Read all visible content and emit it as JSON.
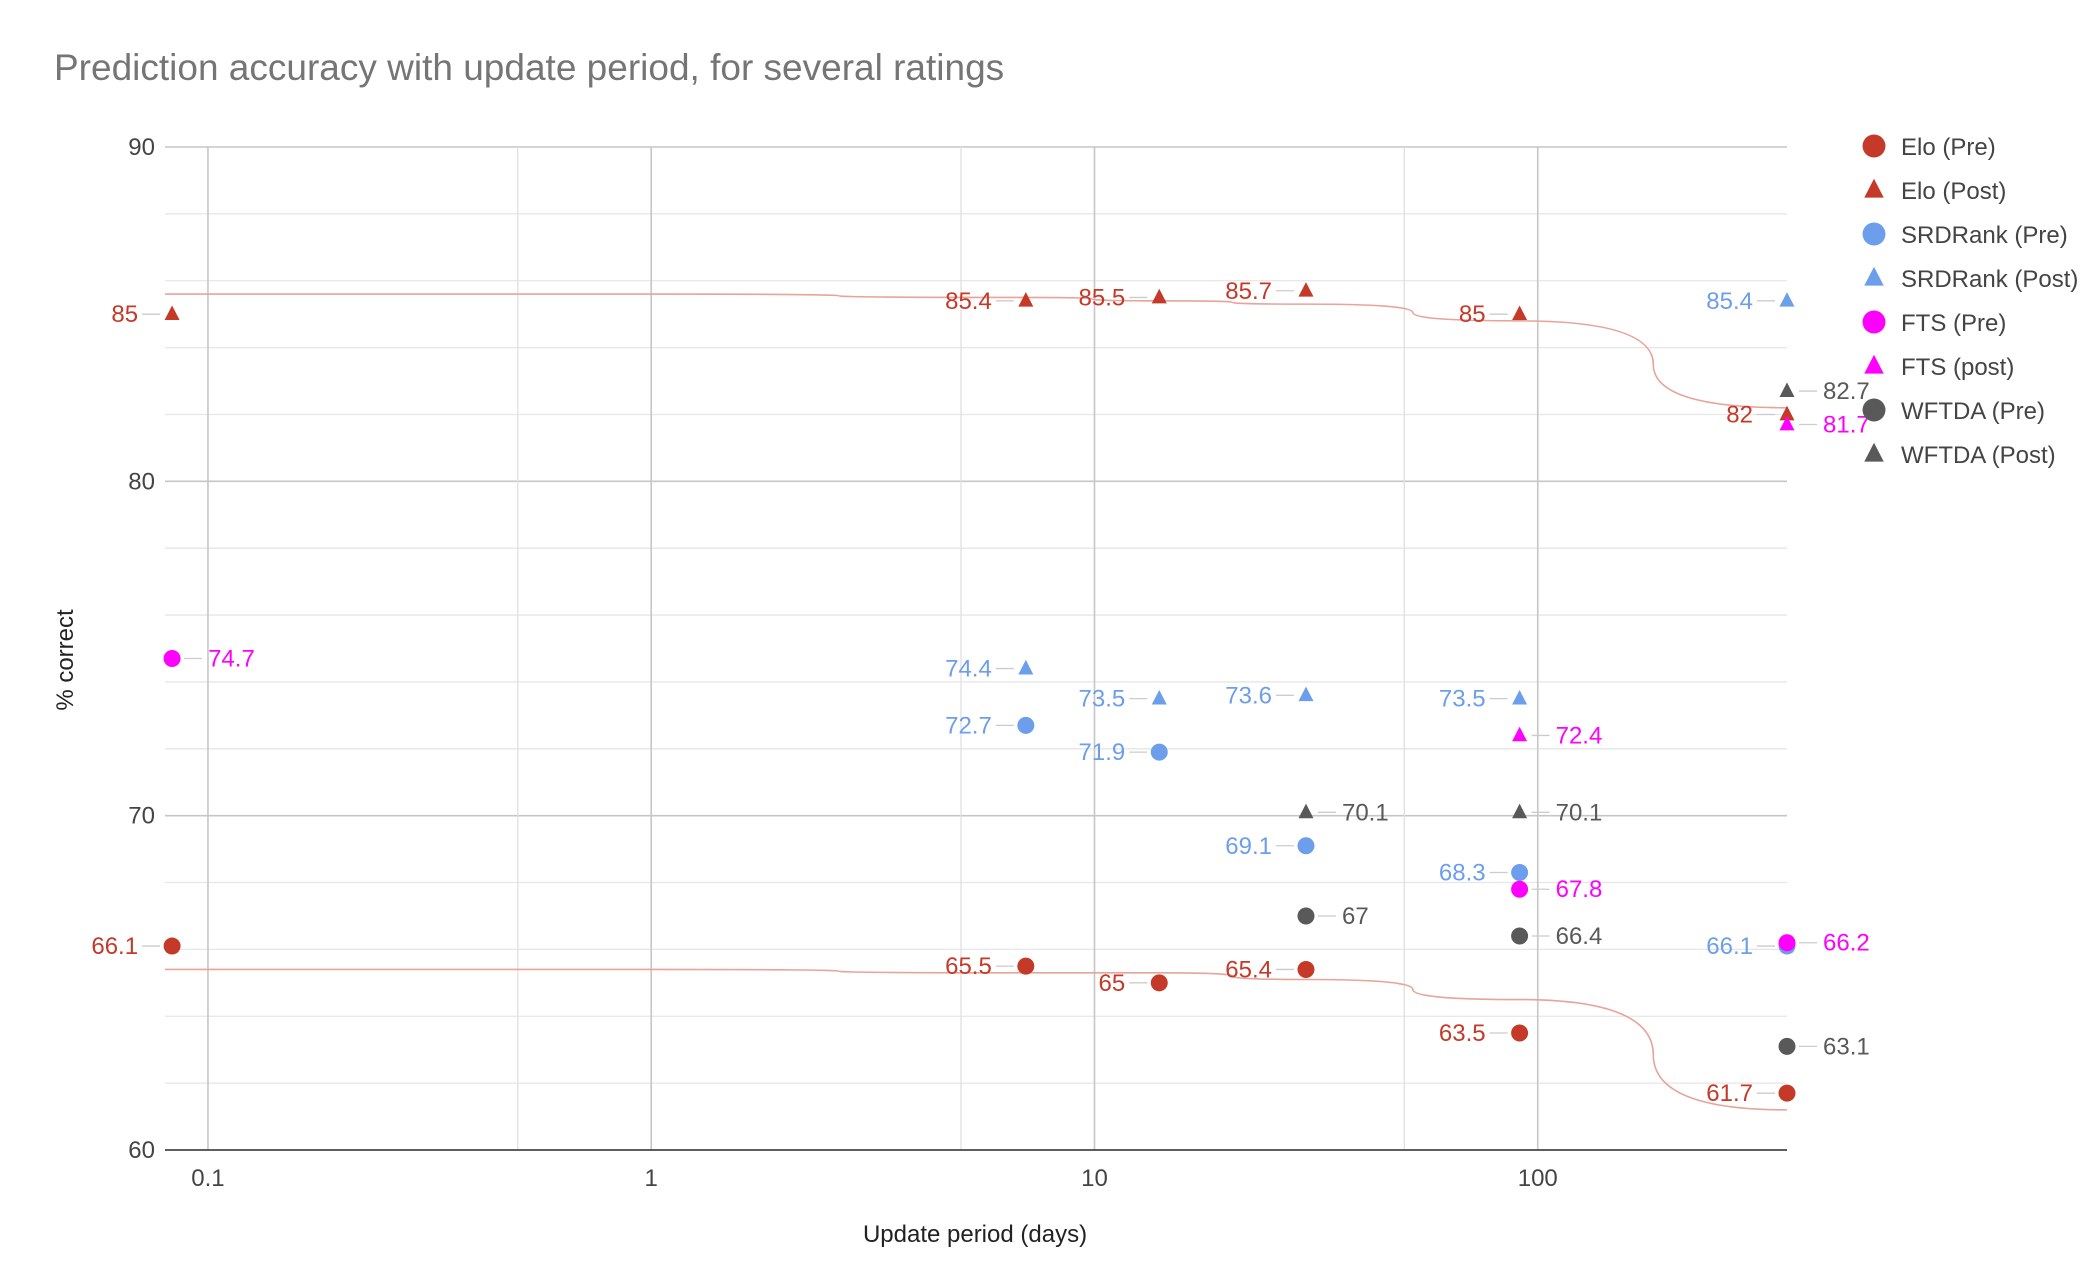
{
  "chart_data": {
    "type": "scatter",
    "title": "Prediction accuracy with update period, for several ratings",
    "xlabel": "Update period (days)",
    "ylabel": "% correct",
    "x_scale": "log",
    "xlim": [
      0.08,
      365
    ],
    "ylim": [
      60,
      90
    ],
    "x_ticks": [
      "0.1",
      "1",
      "10",
      "100"
    ],
    "y_ticks": [
      "60",
      "70",
      "80",
      "90"
    ],
    "grid": true,
    "legend_position": "right",
    "series": [
      {
        "name": "Elo (Pre)",
        "marker": "circle",
        "color": "#c53929",
        "points": [
          {
            "x": 0.083,
            "y": 66.1
          },
          {
            "x": 7,
            "y": 65.5
          },
          {
            "x": 14,
            "y": 65
          },
          {
            "x": 30,
            "y": 65.4
          },
          {
            "x": 91,
            "y": 63.5
          },
          {
            "x": 365,
            "y": 61.7
          }
        ],
        "labels": [
          "66.1",
          "65.5",
          "65",
          "65.4",
          "63.5",
          "61.7"
        ],
        "label_side": [
          "left",
          "left",
          "left",
          "left",
          "left",
          "left"
        ]
      },
      {
        "name": "Elo (Post)",
        "marker": "triangle",
        "color": "#c53929",
        "points": [
          {
            "x": 0.083,
            "y": 85
          },
          {
            "x": 7,
            "y": 85.4
          },
          {
            "x": 14,
            "y": 85.5
          },
          {
            "x": 30,
            "y": 85.7
          },
          {
            "x": 91,
            "y": 85
          },
          {
            "x": 365,
            "y": 82
          }
        ],
        "labels": [
          "85",
          "85.4",
          "85.5",
          "85.7",
          "85",
          "82"
        ],
        "label_side": [
          "left",
          "left",
          "left",
          "left",
          "left",
          "left"
        ]
      },
      {
        "name": "SRDRank (Pre)",
        "marker": "circle",
        "color": "#6d9eeb",
        "points": [
          {
            "x": 7,
            "y": 72.7
          },
          {
            "x": 14,
            "y": 71.9
          },
          {
            "x": 30,
            "y": 69.1
          },
          {
            "x": 91,
            "y": 68.3
          },
          {
            "x": 365,
            "y": 66.1
          }
        ],
        "labels": [
          "72.7",
          "71.9",
          "69.1",
          "68.3",
          "66.1"
        ],
        "label_side": [
          "left",
          "left",
          "left",
          "left",
          "left"
        ]
      },
      {
        "name": "SRDRank (Post)",
        "marker": "triangle",
        "color": "#6d9eeb",
        "points": [
          {
            "x": 7,
            "y": 74.4
          },
          {
            "x": 14,
            "y": 73.5
          },
          {
            "x": 30,
            "y": 73.6
          },
          {
            "x": 91,
            "y": 73.5
          },
          {
            "x": 365,
            "y": 85.4
          }
        ],
        "labels": [
          "74.4",
          "73.5",
          "73.6",
          "73.5",
          "85.4"
        ],
        "label_side": [
          "left",
          "left",
          "left",
          "left",
          "left"
        ]
      },
      {
        "name": "FTS (Pre)",
        "marker": "circle",
        "color": "#ff00ff",
        "points": [
          {
            "x": 0.083,
            "y": 74.7
          },
          {
            "x": 91,
            "y": 67.8
          },
          {
            "x": 365,
            "y": 66.2
          }
        ],
        "labels": [
          "74.7",
          "67.8",
          "66.2"
        ],
        "label_side": [
          "right",
          "right",
          "right"
        ]
      },
      {
        "name": "FTS (post)",
        "marker": "triangle",
        "color": "#ff00ff",
        "points": [
          {
            "x": 91,
            "y": 72.4
          },
          {
            "x": 365,
            "y": 81.7
          }
        ],
        "labels": [
          "72.4",
          "81.7"
        ],
        "label_side": [
          "right",
          "right"
        ]
      },
      {
        "name": "WFTDA (Pre)",
        "marker": "circle",
        "color": "#595959",
        "points": [
          {
            "x": 30,
            "y": 67
          },
          {
            "x": 91,
            "y": 66.4
          },
          {
            "x": 365,
            "y": 63.1
          }
        ],
        "labels": [
          "67",
          "66.4",
          "63.1"
        ],
        "label_side": [
          "right",
          "right",
          "right"
        ]
      },
      {
        "name": "WFTDA (Post)",
        "marker": "triangle",
        "color": "#595959",
        "points": [
          {
            "x": 30,
            "y": 70.1
          },
          {
            "x": 91,
            "y": 70.1
          },
          {
            "x": 365,
            "y": 82.7
          }
        ],
        "labels": [
          "70.1",
          "70.1",
          "82.7"
        ],
        "label_side": [
          "right",
          "right",
          "right"
        ]
      }
    ],
    "trendlines": [
      {
        "series": "Elo (Post)",
        "color": "#e8a39b",
        "x": [
          0.08,
          1,
          7,
          14,
          30,
          91,
          365
        ],
        "y": [
          85.6,
          85.6,
          85.5,
          85.4,
          85.3,
          84.8,
          82.2
        ]
      },
      {
        "series": "Elo (Pre)",
        "color": "#e8a39b",
        "x": [
          0.08,
          1,
          7,
          14,
          30,
          91,
          365
        ],
        "y": [
          65.4,
          65.4,
          65.3,
          65.3,
          65.1,
          64.5,
          61.2
        ]
      }
    ]
  }
}
